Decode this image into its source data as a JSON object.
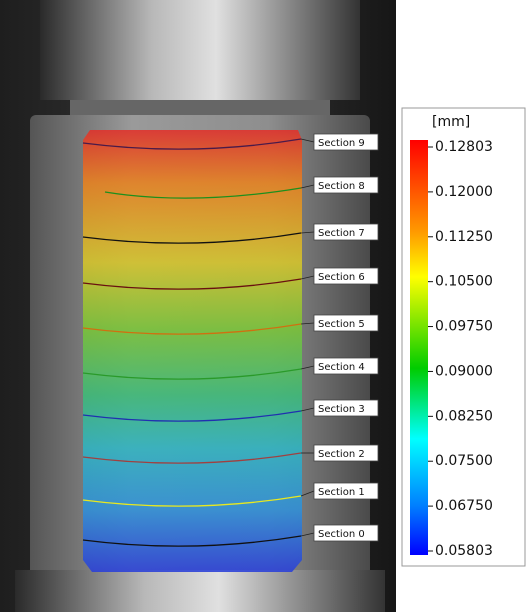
{
  "sections": [
    "Section 9",
    "Section 8",
    "Section 7",
    "Section 6",
    "Section 5",
    "Section 4",
    "Section 3",
    "Section 2",
    "Section 1",
    "Section 0"
  ],
  "legend": {
    "unit": "[mm]",
    "ticks": [
      "0.12803",
      "0.12000",
      "0.11250",
      "0.10500",
      "0.09750",
      "0.09000",
      "0.08250",
      "0.07500",
      "0.06750",
      "0.05803"
    ]
  }
}
